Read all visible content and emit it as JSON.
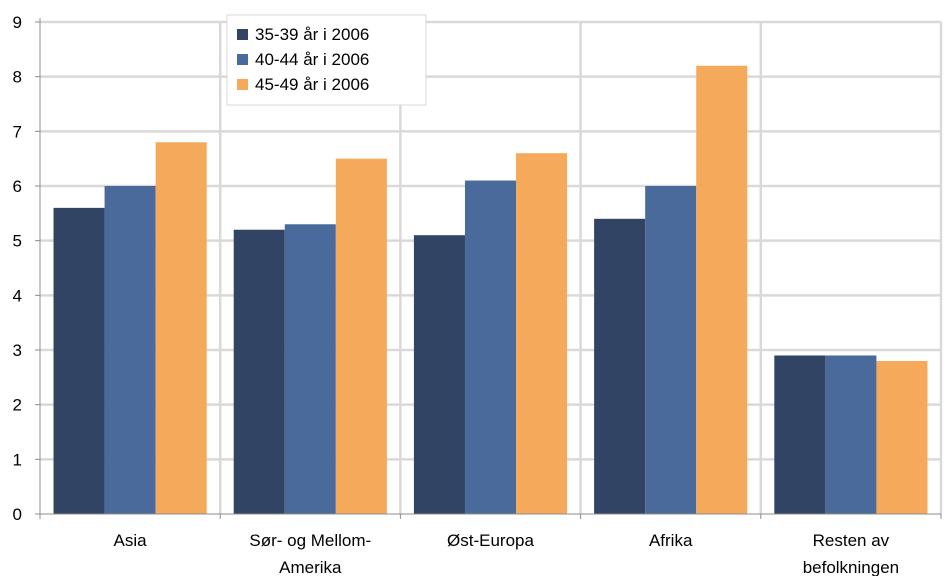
{
  "chart_data": {
    "type": "bar",
    "categories": [
      "Asia",
      "Sør- og Mellom-Amerika",
      "Øst-Europa",
      "Afrika",
      "Resten av befolkningen"
    ],
    "category_lines": [
      [
        "Asia"
      ],
      [
        "Sør- og Mellom-",
        "Amerika"
      ],
      [
        "Øst-Europa"
      ],
      [
        "Afrika"
      ],
      [
        "Resten av",
        "befolkningen"
      ]
    ],
    "series": [
      {
        "name": "35-39 år i 2006",
        "color": "#324463",
        "values": [
          5.6,
          5.2,
          5.1,
          5.4,
          2.9
        ]
      },
      {
        "name": "40-44 år i 2006",
        "color": "#4a6a9c",
        "values": [
          6.0,
          5.3,
          6.1,
          6.0,
          2.9
        ]
      },
      {
        "name": "45-49 år i 2006",
        "color": "#f5a95a",
        "values": [
          6.8,
          6.5,
          6.6,
          8.2,
          2.8
        ]
      }
    ],
    "y_ticks": [
      "0",
      "1",
      "2",
      "3",
      "4",
      "5",
      "6",
      "7",
      "8",
      "9"
    ],
    "ylim": [
      0,
      9
    ],
    "grid": true,
    "legend_position": "top-left, inside plot",
    "title": "",
    "xlabel": "",
    "ylabel": ""
  }
}
